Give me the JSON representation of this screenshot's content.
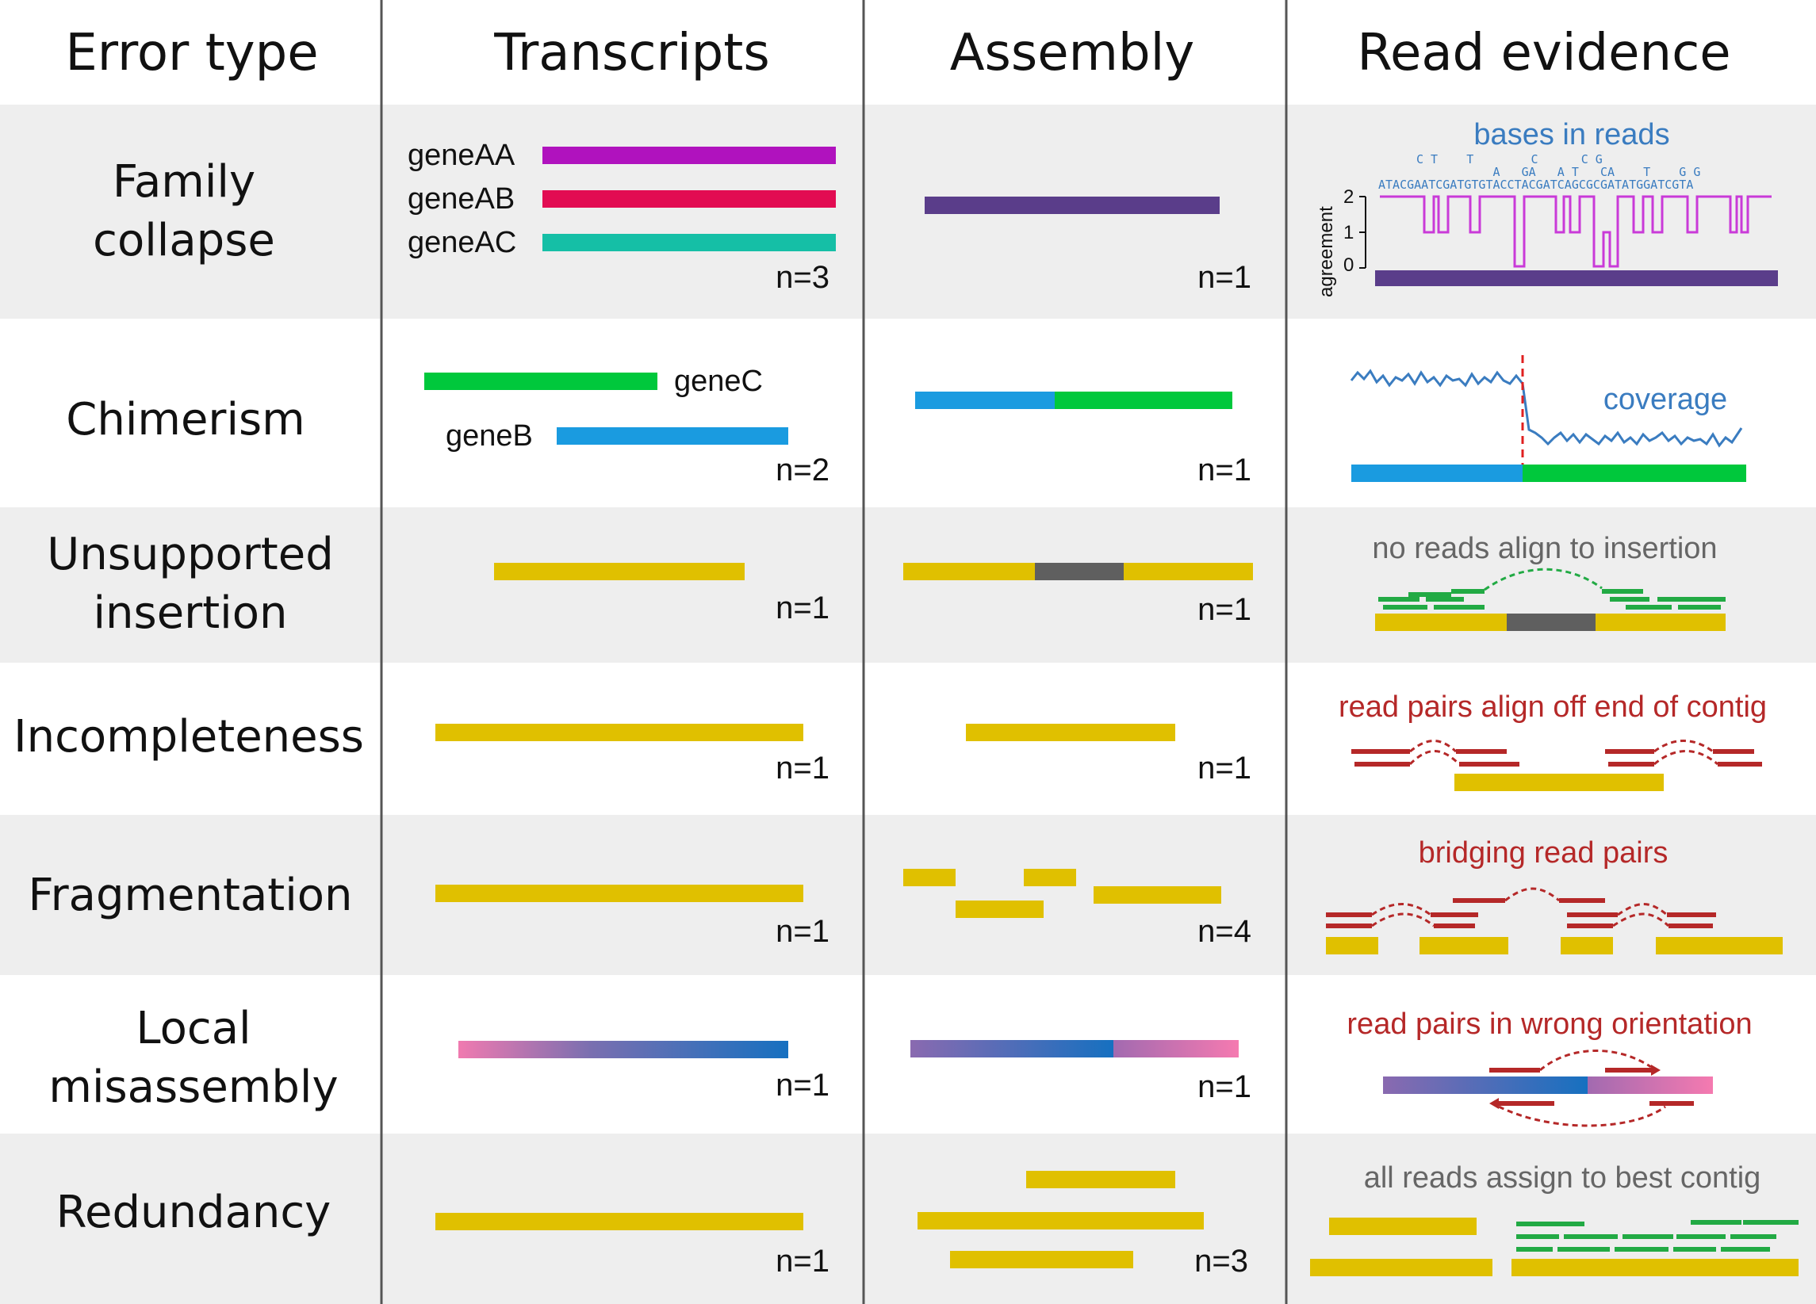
{
  "headers": {
    "error_type": "Error type",
    "transcripts": "Transcripts",
    "assembly": "Assembly",
    "read_evidence": "Read evidence"
  },
  "rows": [
    {
      "label_lines": [
        "Family",
        "collapse"
      ],
      "transcript_labels": [
        "geneAA",
        "geneAB",
        "geneAC"
      ],
      "transcript_n": "n=3",
      "assembly_n": "n=1",
      "evidence": {
        "title": "bases in reads",
        "sequence": "ATACGAATCGATGTGTACCTACGATCAGCGCGATATGGATCGTA",
        "variants_top": "C T    T        C      C G",
        "variants_mid": "                A   GA   A T   CA    T    G G",
        "axis_label": "agreement",
        "ticks": [
          "2",
          "1",
          "0"
        ]
      }
    },
    {
      "label_lines": [
        "Chimerism"
      ],
      "transcript_labels": [
        "geneC",
        "geneB"
      ],
      "transcript_n": "n=2",
      "assembly_n": "n=1",
      "evidence": {
        "title": "coverage"
      }
    },
    {
      "label_lines": [
        "Unsupported",
        "insertion"
      ],
      "transcript_n": "n=1",
      "assembly_n": "n=1",
      "evidence": {
        "title": "no reads align to insertion"
      }
    },
    {
      "label_lines": [
        "Incompleteness"
      ],
      "transcript_n": "n=1",
      "assembly_n": "n=1",
      "evidence": {
        "title": "read pairs align off end of contig"
      }
    },
    {
      "label_lines": [
        "Fragmentation"
      ],
      "transcript_n": "n=1",
      "assembly_n": "n=4",
      "evidence": {
        "title": "bridging read pairs"
      }
    },
    {
      "label_lines": [
        "Local",
        "misassembly"
      ],
      "transcript_n": "n=1",
      "assembly_n": "n=1",
      "evidence": {
        "title": "read pairs in wrong orientation"
      }
    },
    {
      "label_lines": [
        "Redundancy"
      ],
      "transcript_n": "n=1",
      "assembly_n": "n=3",
      "evidence": {
        "title": "all reads assign to best contig"
      }
    }
  ],
  "colors": {
    "row_shade": "#eeeeee",
    "divider": "#555555",
    "geneAA": "#b012be",
    "geneAB": "#e20c52",
    "geneAC": "#15bfa6",
    "collapsed": "#5a3d8a",
    "geneC": "#00c83c",
    "geneB": "#1a9be0",
    "contig": "#e0c000",
    "insertion": "#5f5f5f",
    "reads_green": "#22aa44",
    "reads_red": "#b52828",
    "evidence_blue": "#3a7cc0",
    "evidence_grey": "#666666",
    "evidence_red": "#b52828",
    "cutpoint": "#e02020",
    "agreement_line": "#c93ad8"
  }
}
